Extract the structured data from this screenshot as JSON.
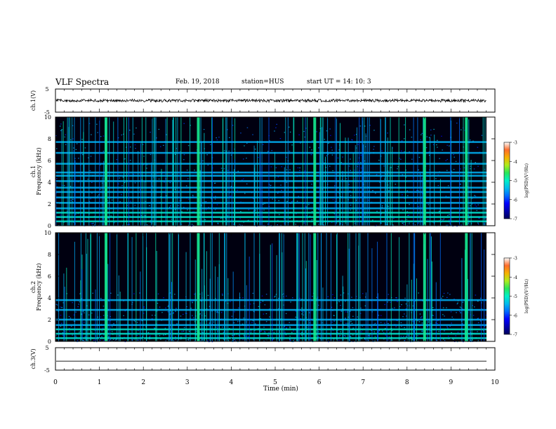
{
  "header": {
    "title": "VLF Spectra",
    "date": "Feb. 19, 2018",
    "station": "station=HUS",
    "start": "start UT =   14: 10: 3"
  },
  "chart_data": [
    {
      "type": "line",
      "ylabel": "ch.1(V)",
      "ylim": [
        -5,
        5
      ],
      "yticks": [
        5,
        -5
      ],
      "description_level": 0.0,
      "xlim": [
        0,
        10
      ]
    },
    {
      "type": "heatmap",
      "ylabel_top": "ch.1",
      "ylabel": "Frequency (kHz)",
      "ylim": [
        0,
        10
      ],
      "yticks": [
        0,
        2,
        4,
        6,
        8,
        10
      ],
      "xlim": [
        0,
        10
      ],
      "horizontal_bands_khz": [
        0.4,
        0.8,
        1.2,
        1.6,
        2.1,
        2.6,
        3.1,
        3.5,
        4.1,
        4.6,
        4.9,
        5.7,
        6.7,
        7.7
      ],
      "bright_bursts_min": [
        1.15,
        3.25,
        5.9,
        8.4,
        9.35
      ],
      "colorbar": {
        "label": "log(PSD)(V²/Hz)",
        "range": [
          -7,
          -3
        ],
        "ticks": [
          "-3",
          "-4",
          "-5",
          "-6",
          "-7"
        ]
      }
    },
    {
      "type": "heatmap",
      "ylabel_top": "ch.2",
      "ylabel": "Frequency (kHz)",
      "ylim": [
        0,
        10
      ],
      "yticks": [
        0,
        2,
        4,
        6,
        8,
        10
      ],
      "xlim": [
        0,
        10
      ],
      "horizontal_bands_khz": [
        0.3,
        0.7,
        1.1,
        1.5,
        2.0,
        2.9,
        3.8
      ],
      "bright_bursts_min": [
        1.15,
        3.25,
        5.9,
        8.4,
        9.35
      ],
      "colorbar": {
        "label": "log(PSD)(V²/Hz)",
        "range": [
          -7,
          -3
        ],
        "ticks": [
          "-3",
          "-4",
          "-5",
          "-6",
          "-7"
        ]
      }
    },
    {
      "type": "line",
      "ylabel": "ch.3(V)",
      "ylim": [
        -5,
        5
      ],
      "yticks": [
        5,
        -5
      ],
      "level": -1.0,
      "xlim": [
        0,
        10
      ],
      "xlabel": "Time (min)",
      "xticks": [
        "0",
        "1",
        "2",
        "3",
        "4",
        "5",
        "6",
        "7",
        "8",
        "9",
        "10"
      ]
    }
  ]
}
